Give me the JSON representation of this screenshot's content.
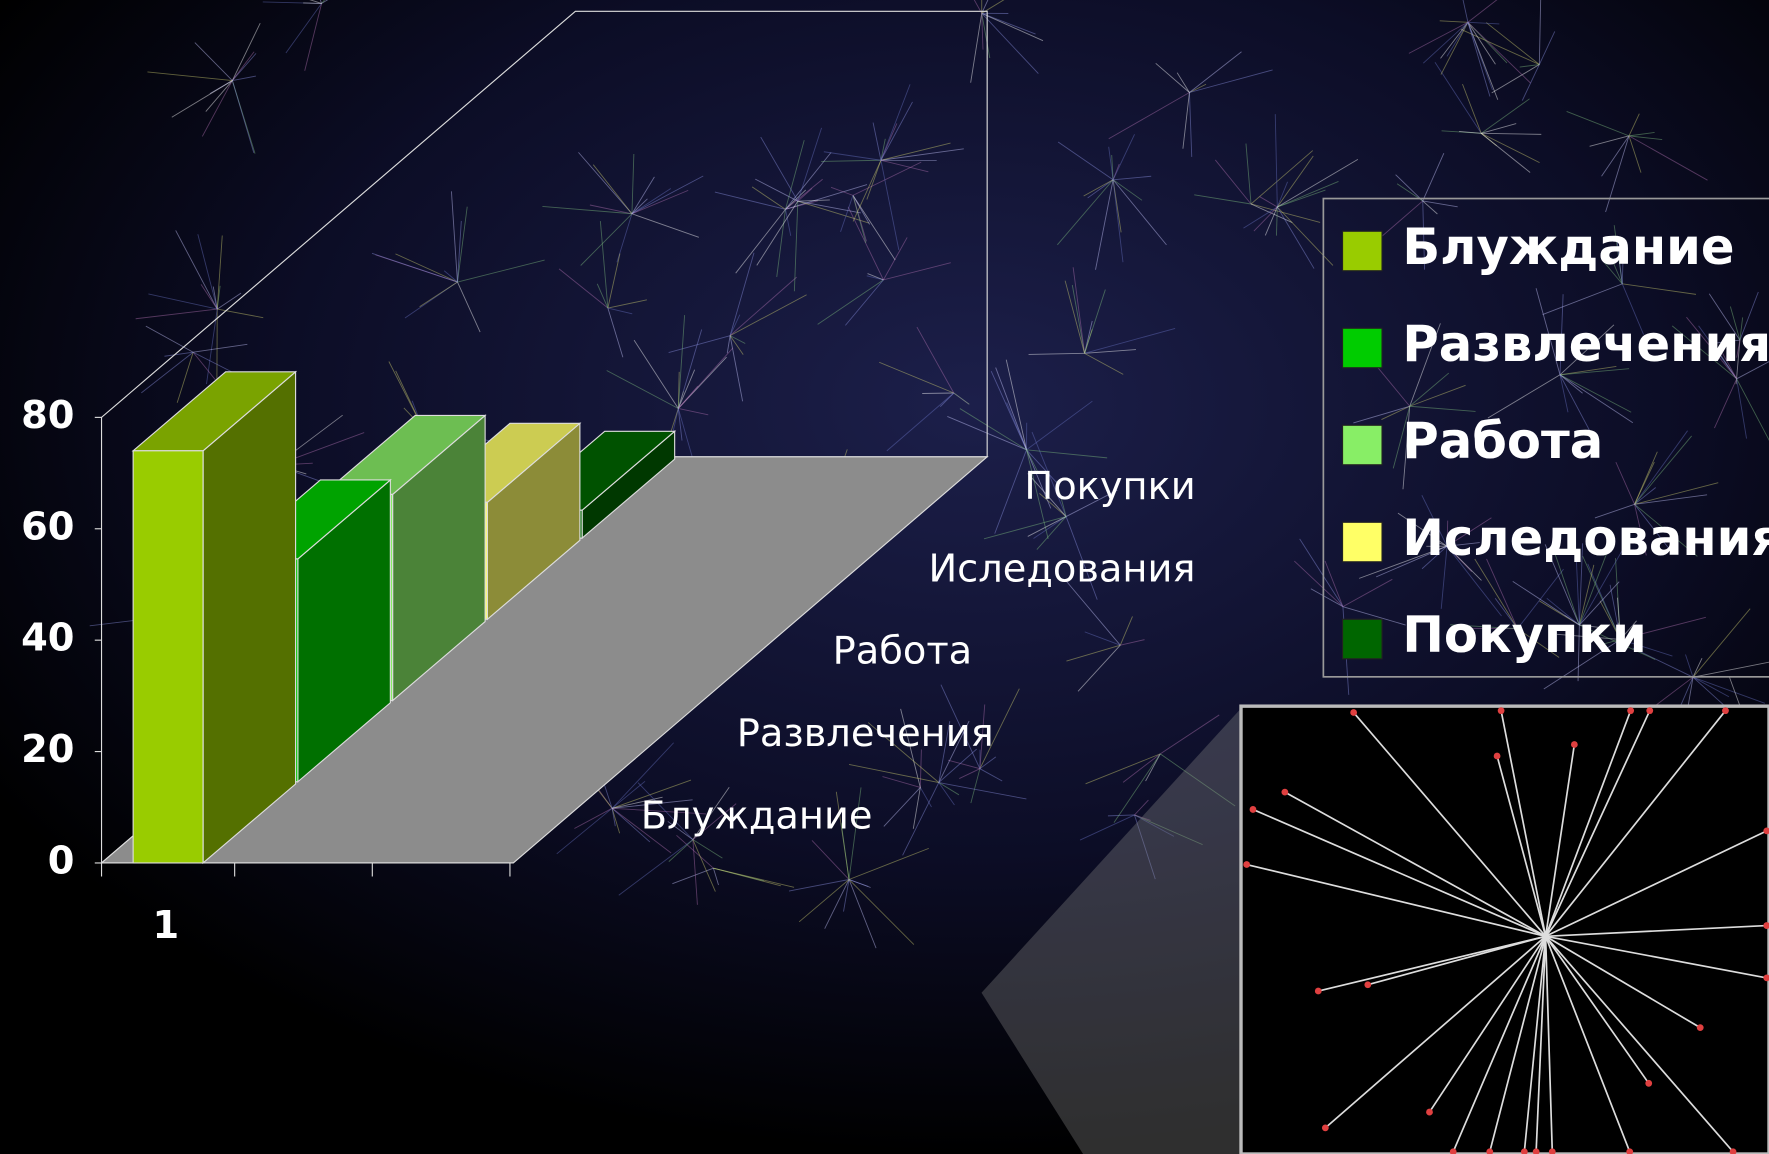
{
  "chart_data": {
    "type": "bar",
    "categories": [
      "1"
    ],
    "series": [
      {
        "name": "Блуждание",
        "color": "#99cc00",
        "values": [
          74
        ]
      },
      {
        "name": "Развлечения",
        "color": "#00cc00",
        "values": [
          40
        ]
      },
      {
        "name": "Работа",
        "color": "#88ee66",
        "values": [
          37
        ]
      },
      {
        "name": "Иследования",
        "color": "#ffff66",
        "values": [
          21
        ]
      },
      {
        "name": "Покупки",
        "color": "#006600",
        "values": [
          5
        ]
      }
    ],
    "ylim": [
      0,
      80
    ],
    "yticks": [
      0,
      20,
      40,
      60,
      80
    ],
    "legend": "right"
  }
}
